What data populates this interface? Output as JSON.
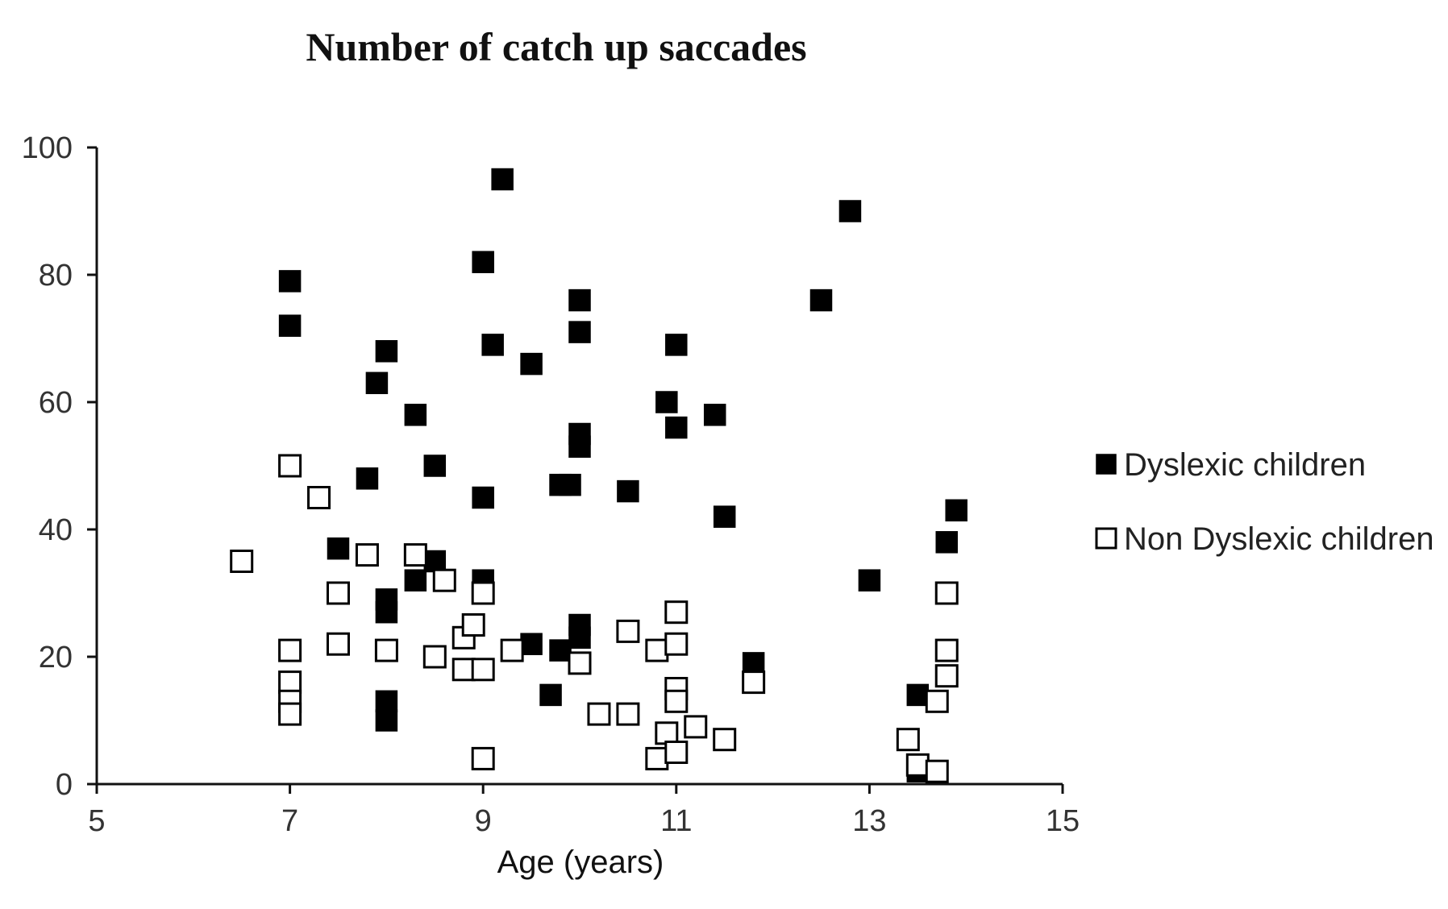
{
  "chart_data": {
    "type": "scatter",
    "title": "Number of catch up saccades",
    "xlabel": "Age (years)",
    "ylabel": "",
    "xlim": [
      5,
      15
    ],
    "ylim": [
      0,
      100
    ],
    "xticks": [
      5,
      7,
      9,
      11,
      13,
      15
    ],
    "yticks": [
      0,
      20,
      40,
      60,
      80,
      100
    ],
    "grid": false,
    "legend_position": "right",
    "series": [
      {
        "name": "Dyslexic children",
        "marker": "filled-square",
        "color": "#000000",
        "points": [
          [
            7.0,
            79
          ],
          [
            7.0,
            72
          ],
          [
            7.5,
            37
          ],
          [
            7.8,
            48
          ],
          [
            7.9,
            63
          ],
          [
            8.0,
            68
          ],
          [
            8.0,
            29
          ],
          [
            8.0,
            27
          ],
          [
            8.0,
            13
          ],
          [
            8.0,
            10
          ],
          [
            8.3,
            58
          ],
          [
            8.3,
            32
          ],
          [
            8.5,
            50
          ],
          [
            8.5,
            35
          ],
          [
            9.0,
            82
          ],
          [
            9.0,
            45
          ],
          [
            9.0,
            32
          ],
          [
            9.1,
            69
          ],
          [
            9.2,
            95
          ],
          [
            9.5,
            66
          ],
          [
            9.5,
            22
          ],
          [
            9.7,
            14
          ],
          [
            9.8,
            47
          ],
          [
            9.8,
            21
          ],
          [
            9.9,
            47
          ],
          [
            10.0,
            76
          ],
          [
            10.0,
            71
          ],
          [
            10.0,
            55
          ],
          [
            10.0,
            53
          ],
          [
            10.0,
            25
          ],
          [
            10.0,
            23
          ],
          [
            10.5,
            46
          ],
          [
            10.9,
            60
          ],
          [
            11.0,
            69
          ],
          [
            11.0,
            56
          ],
          [
            11.4,
            58
          ],
          [
            11.5,
            42
          ],
          [
            11.8,
            19
          ],
          [
            12.5,
            76
          ],
          [
            12.8,
            90
          ],
          [
            13.0,
            32
          ],
          [
            13.5,
            14
          ],
          [
            13.5,
            2
          ],
          [
            13.8,
            38
          ],
          [
            13.9,
            43
          ]
        ]
      },
      {
        "name": "Non Dyslexic children",
        "marker": "open-square",
        "color": "#000000",
        "points": [
          [
            6.5,
            35
          ],
          [
            7.0,
            50
          ],
          [
            7.0,
            21
          ],
          [
            7.0,
            16
          ],
          [
            7.0,
            13
          ],
          [
            7.0,
            11
          ],
          [
            7.3,
            45
          ],
          [
            7.5,
            30
          ],
          [
            7.5,
            22
          ],
          [
            7.8,
            36
          ],
          [
            8.0,
            21
          ],
          [
            8.3,
            36
          ],
          [
            8.5,
            20
          ],
          [
            8.6,
            32
          ],
          [
            8.8,
            23
          ],
          [
            8.8,
            18
          ],
          [
            8.9,
            25
          ],
          [
            9.0,
            30
          ],
          [
            9.0,
            18
          ],
          [
            9.0,
            4
          ],
          [
            9.3,
            21
          ],
          [
            10.0,
            19
          ],
          [
            10.2,
            11
          ],
          [
            10.5,
            24
          ],
          [
            10.5,
            11
          ],
          [
            10.8,
            21
          ],
          [
            10.8,
            4
          ],
          [
            10.9,
            8
          ],
          [
            11.0,
            27
          ],
          [
            11.0,
            22
          ],
          [
            11.0,
            15
          ],
          [
            11.0,
            13
          ],
          [
            11.0,
            5
          ],
          [
            11.2,
            9
          ],
          [
            11.5,
            7
          ],
          [
            11.8,
            16
          ],
          [
            13.4,
            7
          ],
          [
            13.5,
            3
          ],
          [
            13.7,
            13
          ],
          [
            13.7,
            2
          ],
          [
            13.8,
            30
          ],
          [
            13.8,
            21
          ],
          [
            13.8,
            17
          ]
        ]
      }
    ]
  }
}
